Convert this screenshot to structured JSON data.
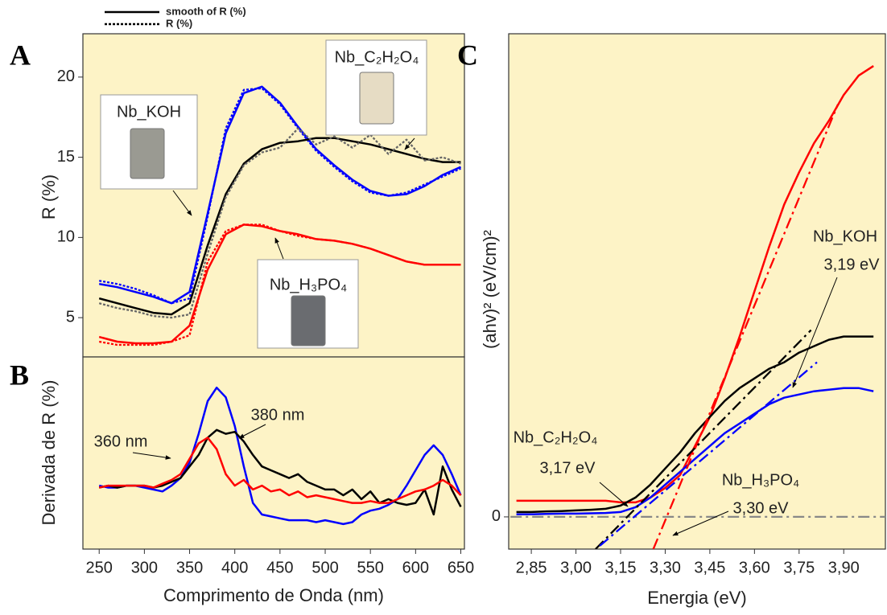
{
  "chart_data": [
    {
      "type": "line",
      "panel_label": "A",
      "ylabel": "R (%)",
      "legend": [
        {
          "name": "smooth of R (%)",
          "style": "solid"
        },
        {
          "name": "R (%)",
          "style": "dotted"
        }
      ],
      "x": [
        250,
        270,
        290,
        310,
        330,
        350,
        370,
        390,
        410,
        430,
        450,
        470,
        490,
        510,
        530,
        550,
        570,
        590,
        610,
        630,
        650
      ],
      "xlim": [
        232,
        654
      ],
      "ylim": [
        2.55,
        22.7
      ],
      "yticks": [
        5,
        10,
        15,
        20
      ],
      "series": [
        {
          "color": "#0000ff",
          "style": "solid",
          "values": [
            7.1,
            6.9,
            6.6,
            6.3,
            5.9,
            6.6,
            11.5,
            16.5,
            19.0,
            19.4,
            18.4,
            16.9,
            15.5,
            14.5,
            13.6,
            12.9,
            12.6,
            12.7,
            13.2,
            13.9,
            14.4
          ]
        },
        {
          "color": "#0000ff",
          "style": "dotted",
          "values": [
            7.3,
            7.1,
            6.8,
            6.4,
            5.9,
            6.2,
            11.3,
            16.8,
            19.2,
            19.3,
            18.3,
            16.8,
            15.4,
            14.4,
            13.5,
            12.8,
            12.6,
            12.8,
            13.3,
            13.8,
            14.3
          ]
        },
        {
          "color": "#000000",
          "style": "solid",
          "values": [
            6.2,
            5.9,
            5.6,
            5.3,
            5.2,
            5.9,
            9.5,
            12.7,
            14.6,
            15.5,
            15.9,
            16.0,
            16.2,
            16.2,
            16.0,
            15.8,
            15.5,
            15.2,
            14.9,
            14.7,
            14.7
          ]
        },
        {
          "color": "#666666",
          "style": "dotted",
          "values": [
            5.9,
            5.6,
            5.4,
            5.1,
            5.0,
            5.2,
            9.0,
            12.5,
            14.5,
            15.3,
            15.6,
            16.8,
            15.8,
            16.3,
            15.6,
            16.4,
            15.2,
            16.1,
            14.8,
            15.0,
            14.6
          ]
        },
        {
          "color": "#ff0000",
          "style": "solid",
          "values": [
            3.8,
            3.5,
            3.4,
            3.4,
            3.5,
            4.5,
            8.0,
            10.2,
            10.8,
            10.7,
            10.4,
            10.2,
            9.9,
            9.8,
            9.6,
            9.3,
            8.9,
            8.5,
            8.3,
            8.3,
            8.3
          ]
        },
        {
          "color": "#ff0000",
          "style": "dotted",
          "values": [
            3.5,
            3.3,
            3.3,
            3.3,
            3.5,
            3.9,
            8.5,
            10.4,
            10.8,
            10.8,
            10.4,
            10.1,
            9.9,
            9.8,
            9.6,
            9.3,
            8.9,
            8.5,
            8.3,
            8.3,
            8.3
          ]
        }
      ],
      "annotations": [
        {
          "text": "Nb_KOH"
        },
        {
          "text": "Nb_C₂H₂O₄"
        },
        {
          "text": "Nb_H₃PO₄"
        }
      ]
    },
    {
      "type": "line",
      "panel_label": "B",
      "ylabel": "Derivada de R (%)",
      "xlabel": "Comprimento de Onda (nm)",
      "x": [
        250,
        260,
        270,
        280,
        290,
        300,
        310,
        320,
        330,
        340,
        350,
        360,
        370,
        380,
        390,
        400,
        410,
        420,
        430,
        440,
        450,
        460,
        470,
        480,
        490,
        500,
        510,
        520,
        530,
        540,
        550,
        560,
        570,
        580,
        590,
        600,
        610,
        620,
        630,
        640,
        650
      ],
      "xlim": [
        232,
        654
      ],
      "ylim": [
        0,
        10
      ],
      "xticks": [
        250,
        300,
        350,
        400,
        450,
        500,
        550,
        600,
        650
      ],
      "series": [
        {
          "color": "#0000ff",
          "style": "solid",
          "values": [
            3.3,
            3.2,
            3.2,
            3.3,
            3.3,
            3.2,
            3.1,
            3.0,
            3.3,
            3.7,
            4.5,
            6.0,
            7.7,
            8.4,
            7.9,
            6.4,
            4.3,
            2.4,
            1.8,
            1.7,
            1.6,
            1.5,
            1.5,
            1.5,
            1.4,
            1.5,
            1.4,
            1.3,
            1.4,
            1.8,
            2.0,
            2.1,
            2.3,
            2.6,
            3.3,
            4.1,
            4.9,
            5.4,
            4.9,
            3.9,
            2.8
          ]
        },
        {
          "color": "#000000",
          "style": "solid",
          "values": [
            3.2,
            3.3,
            3.2,
            3.3,
            3.3,
            3.3,
            3.2,
            3.3,
            3.5,
            3.7,
            4.3,
            4.9,
            5.8,
            6.2,
            6.0,
            6.1,
            5.6,
            4.9,
            4.3,
            4.1,
            3.9,
            3.7,
            3.9,
            3.5,
            3.3,
            3.1,
            3.1,
            2.8,
            3.1,
            2.6,
            3.0,
            2.4,
            2.6,
            2.4,
            2.3,
            2.4,
            3.1,
            1.8,
            4.3,
            3.1,
            2.2
          ]
        },
        {
          "color": "#ff0000",
          "style": "solid",
          "values": [
            3.2,
            3.3,
            3.3,
            3.3,
            3.3,
            3.3,
            3.2,
            3.4,
            3.6,
            3.9,
            4.7,
            5.5,
            5.8,
            5.2,
            3.9,
            3.3,
            3.6,
            3.1,
            3.3,
            3.0,
            3.1,
            2.8,
            3.0,
            2.7,
            2.8,
            2.7,
            2.6,
            2.5,
            2.4,
            2.4,
            2.5,
            2.4,
            2.4,
            2.6,
            2.8,
            3.0,
            3.1,
            3.3,
            3.6,
            3.3,
            2.8
          ]
        }
      ],
      "annotations": [
        {
          "text": "360 nm"
        },
        {
          "text": "380 nm"
        }
      ]
    },
    {
      "type": "line",
      "panel_label": "C",
      "ylabel": "(ahv)² (eV/cm)²",
      "xlabel": "Energia (eV)",
      "x": [
        2.8,
        2.85,
        2.9,
        2.95,
        3.0,
        3.05,
        3.1,
        3.15,
        3.2,
        3.25,
        3.3,
        3.35,
        3.4,
        3.45,
        3.5,
        3.55,
        3.6,
        3.65,
        3.7,
        3.75,
        3.8,
        3.85,
        3.9,
        3.95,
        4.0
      ],
      "xlim": [
        2.774,
        4.04
      ],
      "ylim": [
        -0.1,
        1.5
      ],
      "yticks": [
        0
      ],
      "xticks": [
        {
          "value": 2.85,
          "label": "2,85"
        },
        {
          "value": 3.0,
          "label": "3,00"
        },
        {
          "value": 3.15,
          "label": "3,15"
        },
        {
          "value": 3.3,
          "label": "3,30"
        },
        {
          "value": 3.45,
          "label": "3,45"
        },
        {
          "value": 3.6,
          "label": "3,60"
        },
        {
          "value": 3.75,
          "label": "3,75"
        },
        {
          "value": 3.9,
          "label": "3,90"
        }
      ],
      "series": [
        {
          "color": "#888888",
          "style": "dashdot",
          "x": [
            2.78,
            4.04
          ],
          "values": [
            0,
            0
          ]
        },
        {
          "color": "#ff0000",
          "style": "solid",
          "values": [
            0.05,
            0.05,
            0.05,
            0.05,
            0.05,
            0.05,
            0.05,
            0.045,
            0.045,
            0.06,
            0.09,
            0.13,
            0.22,
            0.31,
            0.43,
            0.56,
            0.7,
            0.84,
            0.97,
            1.07,
            1.16,
            1.23,
            1.31,
            1.37,
            1.4
          ]
        },
        {
          "color": "#000000",
          "style": "solid",
          "values": [
            0.015,
            0.015,
            0.017,
            0.018,
            0.02,
            0.022,
            0.025,
            0.035,
            0.06,
            0.1,
            0.15,
            0.2,
            0.26,
            0.31,
            0.36,
            0.4,
            0.43,
            0.46,
            0.48,
            0.51,
            0.53,
            0.55,
            0.56,
            0.56,
            0.56
          ]
        },
        {
          "color": "#0000ff",
          "style": "solid",
          "values": [
            0.008,
            0.008,
            0.009,
            0.01,
            0.01,
            0.011,
            0.012,
            0.015,
            0.03,
            0.06,
            0.1,
            0.14,
            0.18,
            0.22,
            0.26,
            0.29,
            0.32,
            0.35,
            0.37,
            0.38,
            0.39,
            0.395,
            0.4,
            0.4,
            0.39
          ]
        },
        {
          "color": "#ff0000",
          "style": "dashdot",
          "x": [
            3.26,
            3.88
          ],
          "values": [
            -0.1,
            1.28
          ]
        },
        {
          "color": "#000000",
          "style": "dashdot",
          "x": [
            3.066,
            3.79
          ],
          "values": [
            -0.1,
            0.58
          ]
        },
        {
          "color": "#0000ff",
          "style": "dashdot",
          "x": [
            3.08,
            3.81
          ],
          "values": [
            -0.09,
            0.48
          ]
        }
      ],
      "annotations": [
        {
          "text": "Nb_KOH"
        },
        {
          "text": "3,19 eV"
        },
        {
          "text": "Nb_C₂H₂O₄"
        },
        {
          "text": "3,17 eV"
        },
        {
          "text": "Nb_H₃PO₄"
        },
        {
          "text": "3,30 eV"
        }
      ]
    }
  ]
}
